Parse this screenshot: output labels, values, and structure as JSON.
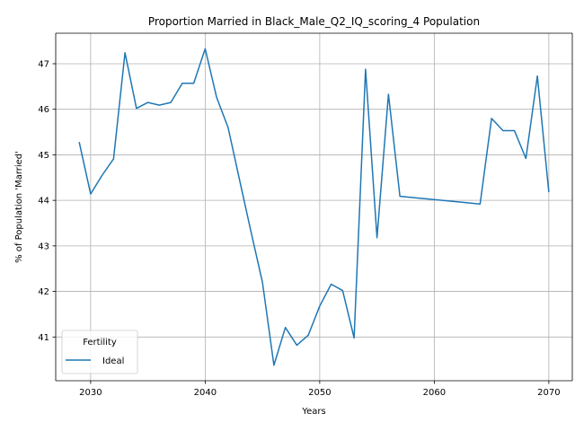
{
  "chart_data": {
    "type": "line",
    "title": "Proportion Married in Black_Male_Q2_IQ_scoring_4 Population",
    "xlabel": "Years",
    "ylabel": "% of Population 'Married'",
    "xlim": [
      2026.95,
      2072.05
    ],
    "ylim": [
      40.04,
      47.67
    ],
    "x_ticks": [
      2030,
      2040,
      2050,
      2060,
      2070
    ],
    "y_ticks": [
      41,
      42,
      43,
      44,
      45,
      46,
      47
    ],
    "grid": true,
    "legend": {
      "title": "Fertility",
      "position": "lower-left"
    },
    "series": [
      {
        "name": "Ideal",
        "color": "#1f77b4",
        "points": [
          [
            2029,
            45.28
          ],
          [
            2030,
            44.14
          ],
          [
            2031,
            44.55
          ],
          [
            2032,
            44.91
          ],
          [
            2033,
            47.24
          ],
          [
            2034,
            46.02
          ],
          [
            2035,
            46.15
          ],
          [
            2036,
            46.09
          ],
          [
            2037,
            46.15
          ],
          [
            2038,
            46.57
          ],
          [
            2039,
            46.57
          ],
          [
            2040,
            47.33
          ],
          [
            2041,
            46.26
          ],
          [
            2042,
            45.6
          ],
          [
            2043,
            44.45
          ],
          [
            2044,
            43.31
          ],
          [
            2045,
            42.2
          ],
          [
            2046,
            40.38
          ],
          [
            2047,
            41.21
          ],
          [
            2048,
            40.82
          ],
          [
            2049,
            41.04
          ],
          [
            2050,
            41.68
          ],
          [
            2051,
            42.16
          ],
          [
            2052,
            42.02
          ],
          [
            2053,
            40.98
          ],
          [
            2054,
            46.88
          ],
          [
            2055,
            43.18
          ],
          [
            2056,
            46.33
          ],
          [
            2057,
            44.09
          ],
          [
            2064,
            43.92
          ],
          [
            2065,
            45.8
          ],
          [
            2066,
            45.53
          ],
          [
            2067,
            45.53
          ],
          [
            2068,
            44.92
          ],
          [
            2069,
            46.73
          ],
          [
            2070,
            44.18
          ]
        ]
      }
    ]
  }
}
